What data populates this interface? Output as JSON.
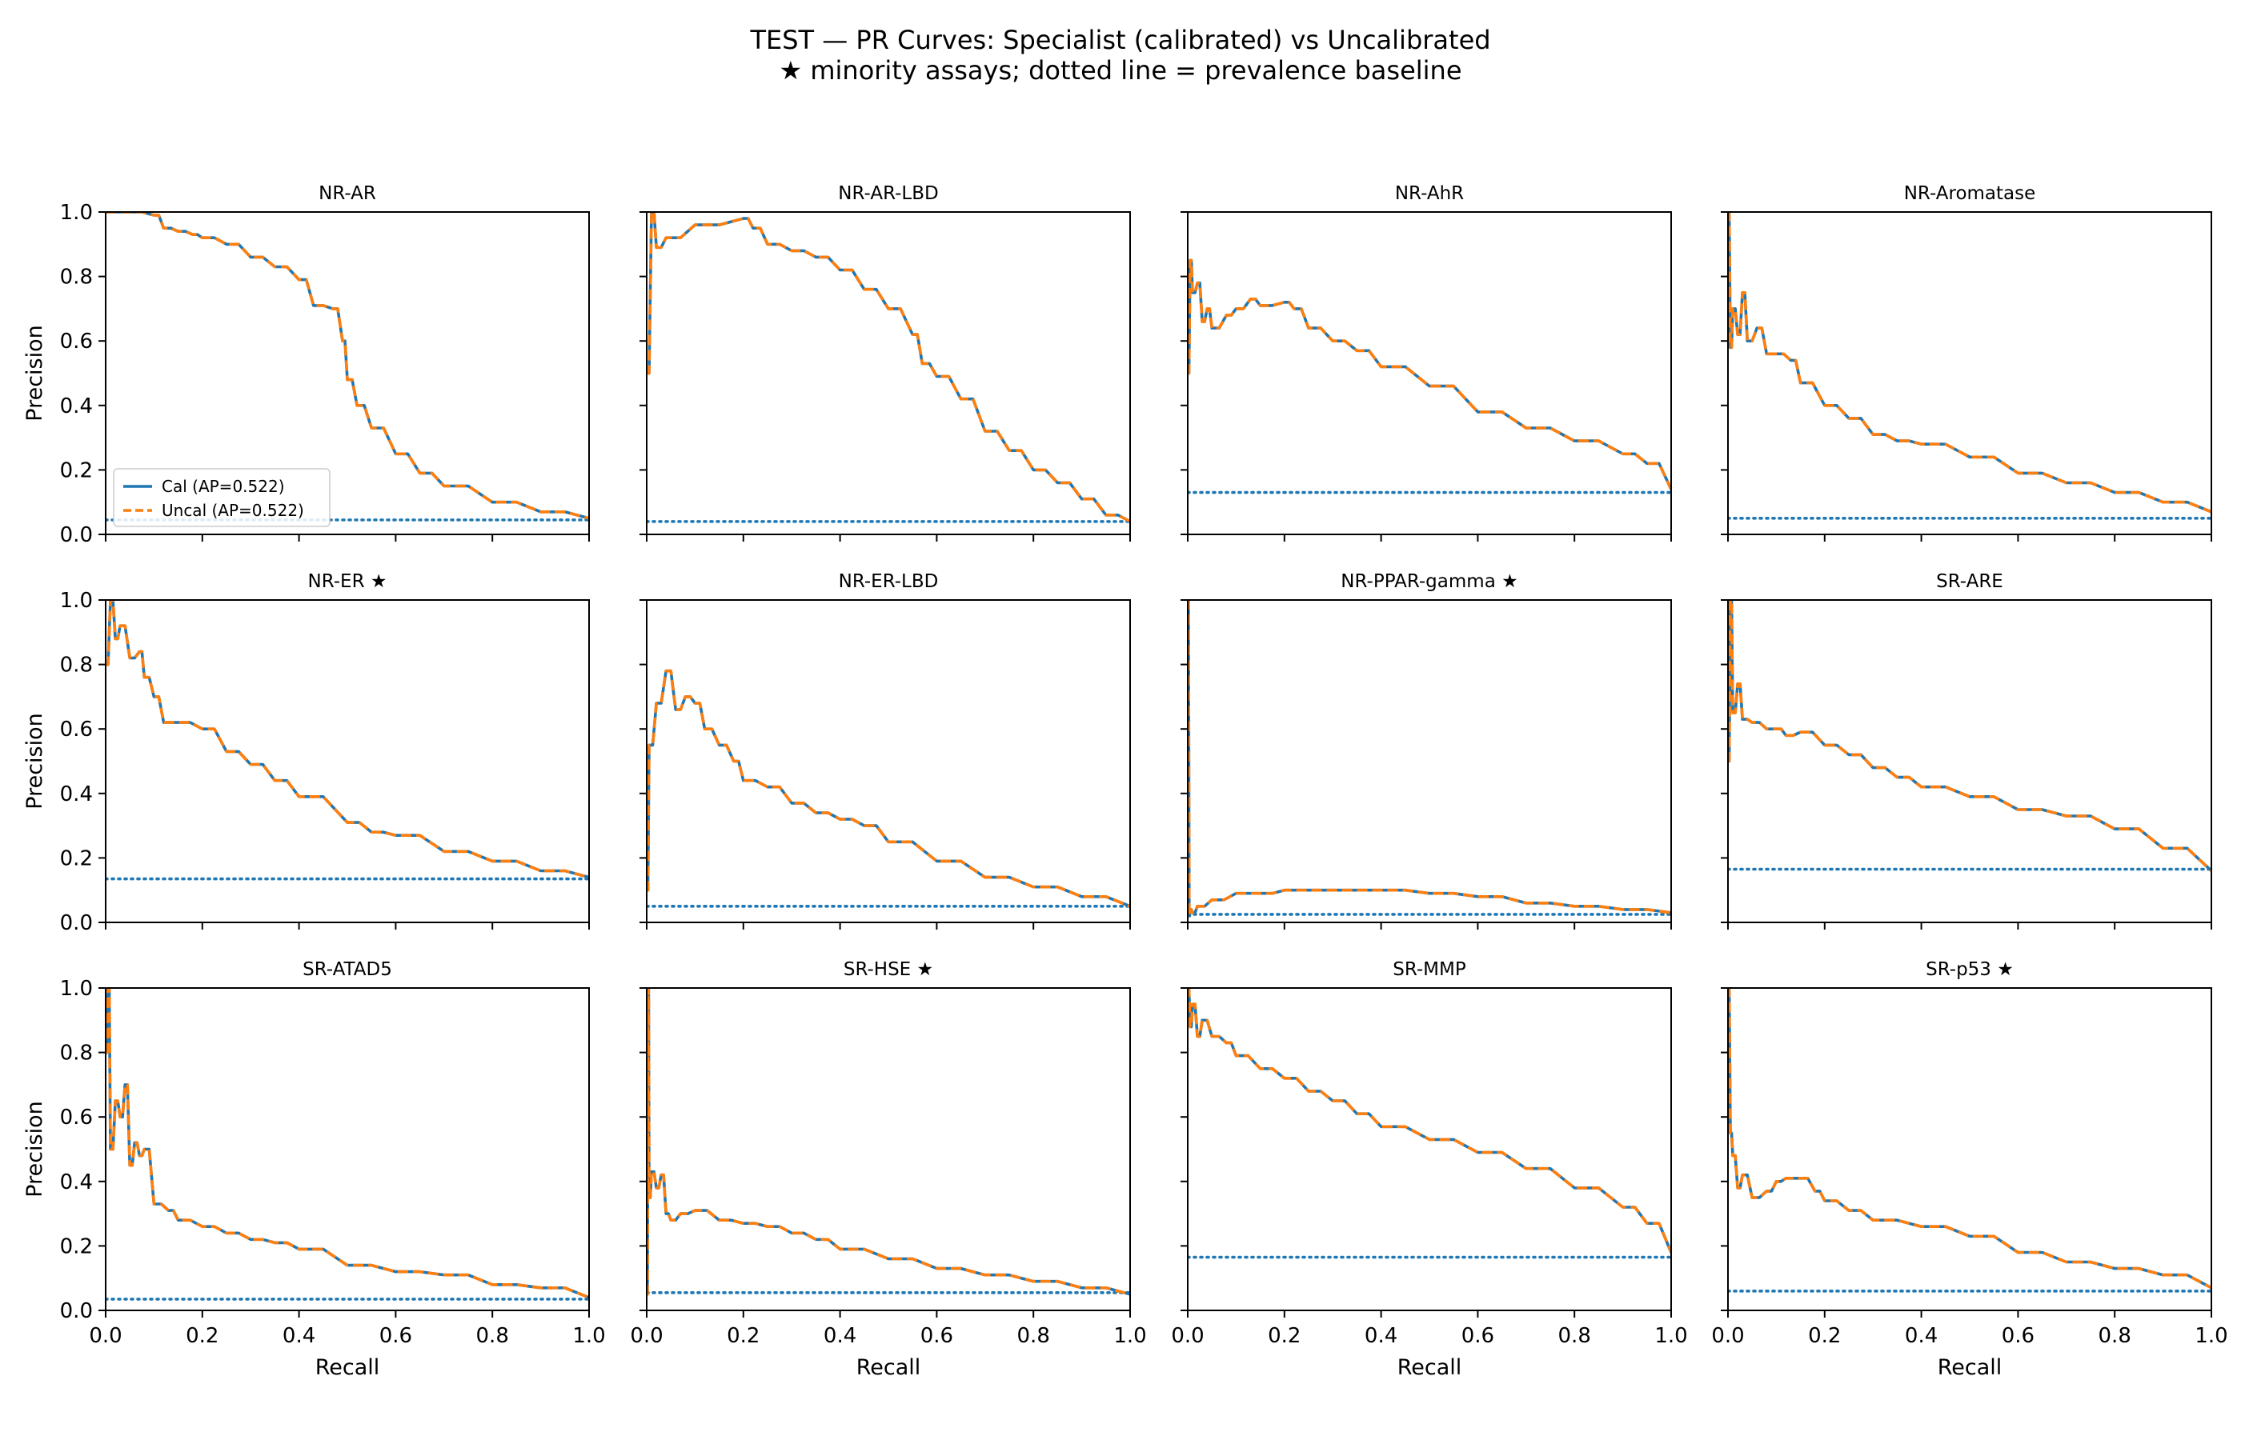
{
  "figure": {
    "title_line1": "TEST — PR Curves: Specialist (calibrated) vs Uncalibrated",
    "title_line2": "★ minority assays; dotted line = prevalence baseline"
  },
  "colors": {
    "cal": "#1f77b4",
    "uncal": "#ff7f0e",
    "baseline": "#1f77b4"
  },
  "chart_data": [
    {
      "type": "line",
      "title": "NR-AR",
      "xlabel": "",
      "ylabel": "Precision",
      "xlim": [
        0,
        1
      ],
      "ylim": [
        0,
        1
      ],
      "baseline": 0.045,
      "legend": {
        "placement": "lower-left",
        "entries": [
          "Cal (AP=0.522)",
          "Uncal (AP=0.522)"
        ]
      },
      "series": [
        {
          "name": "Cal (AP=0.522)",
          "style": "solid"
        },
        {
          "name": "Uncal (AP=0.522)",
          "style": "dashed"
        }
      ],
      "x": [
        0,
        0.05,
        0.1,
        0.12,
        0.15,
        0.18,
        0.2,
        0.25,
        0.3,
        0.35,
        0.4,
        0.43,
        0.47,
        0.49,
        0.5,
        0.52,
        0.55,
        0.6,
        0.65,
        0.7,
        0.8,
        0.9,
        1.0
      ],
      "y": [
        1.0,
        1.0,
        0.99,
        0.95,
        0.94,
        0.93,
        0.92,
        0.9,
        0.86,
        0.83,
        0.79,
        0.71,
        0.7,
        0.6,
        0.48,
        0.4,
        0.33,
        0.25,
        0.19,
        0.15,
        0.1,
        0.07,
        0.05
      ]
    },
    {
      "type": "line",
      "title": "NR-AR-LBD",
      "xlabel": "",
      "ylabel": "",
      "xlim": [
        0,
        1
      ],
      "ylim": [
        0,
        1
      ],
      "baseline": 0.04,
      "series": [
        {
          "name": "",
          "style": "solid"
        },
        {
          "name": "",
          "style": "dashed"
        }
      ],
      "x": [
        0,
        0.01,
        0.02,
        0.04,
        0.1,
        0.2,
        0.22,
        0.25,
        0.3,
        0.35,
        0.4,
        0.45,
        0.5,
        0.55,
        0.57,
        0.6,
        0.65,
        0.7,
        0.75,
        0.8,
        0.85,
        0.9,
        0.95,
        1.0
      ],
      "y": [
        0.5,
        1.0,
        0.89,
        0.92,
        0.96,
        0.98,
        0.95,
        0.9,
        0.88,
        0.86,
        0.82,
        0.76,
        0.7,
        0.62,
        0.53,
        0.49,
        0.42,
        0.32,
        0.26,
        0.2,
        0.16,
        0.11,
        0.06,
        0.04
      ]
    },
    {
      "type": "line",
      "title": "NR-AhR",
      "xlabel": "",
      "ylabel": "",
      "xlim": [
        0,
        1
      ],
      "ylim": [
        0,
        1
      ],
      "baseline": 0.13,
      "series": [
        {
          "name": "",
          "style": "solid"
        },
        {
          "name": "",
          "style": "dashed"
        }
      ],
      "x": [
        0,
        0.005,
        0.01,
        0.02,
        0.03,
        0.04,
        0.05,
        0.08,
        0.1,
        0.13,
        0.15,
        0.2,
        0.22,
        0.25,
        0.3,
        0.35,
        0.4,
        0.5,
        0.6,
        0.7,
        0.8,
        0.9,
        0.95,
        1.0
      ],
      "y": [
        0.5,
        0.85,
        0.75,
        0.78,
        0.66,
        0.7,
        0.64,
        0.68,
        0.7,
        0.73,
        0.71,
        0.72,
        0.7,
        0.64,
        0.6,
        0.57,
        0.52,
        0.46,
        0.38,
        0.33,
        0.29,
        0.25,
        0.22,
        0.14
      ]
    },
    {
      "type": "line",
      "title": "NR-Aromatase",
      "xlabel": "",
      "ylabel": "",
      "xlim": [
        0,
        1
      ],
      "ylim": [
        0,
        1
      ],
      "baseline": 0.05,
      "series": [
        {
          "name": "",
          "style": "solid"
        },
        {
          "name": "",
          "style": "dashed"
        }
      ],
      "x": [
        0,
        0.005,
        0.01,
        0.02,
        0.03,
        0.04,
        0.06,
        0.08,
        0.1,
        0.13,
        0.15,
        0.2,
        0.25,
        0.3,
        0.35,
        0.4,
        0.5,
        0.6,
        0.7,
        0.8,
        0.9,
        1.0
      ],
      "y": [
        1.0,
        0.58,
        0.7,
        0.62,
        0.75,
        0.6,
        0.64,
        0.56,
        0.56,
        0.54,
        0.47,
        0.4,
        0.36,
        0.31,
        0.29,
        0.28,
        0.24,
        0.19,
        0.16,
        0.13,
        0.1,
        0.07
      ]
    },
    {
      "type": "line",
      "title": "NR-ER ★",
      "xlabel": "",
      "ylabel": "Precision",
      "xlim": [
        0,
        1
      ],
      "ylim": [
        0,
        1
      ],
      "baseline": 0.135,
      "series": [
        {
          "name": "",
          "style": "solid"
        },
        {
          "name": "",
          "style": "dashed"
        }
      ],
      "x": [
        0,
        0.01,
        0.02,
        0.03,
        0.05,
        0.07,
        0.08,
        0.1,
        0.12,
        0.15,
        0.2,
        0.25,
        0.3,
        0.35,
        0.4,
        0.5,
        0.55,
        0.6,
        0.7,
        0.8,
        0.9,
        1.0
      ],
      "y": [
        0.8,
        1.0,
        0.88,
        0.92,
        0.82,
        0.84,
        0.76,
        0.7,
        0.62,
        0.62,
        0.6,
        0.53,
        0.49,
        0.44,
        0.39,
        0.31,
        0.28,
        0.27,
        0.22,
        0.19,
        0.16,
        0.14
      ]
    },
    {
      "type": "line",
      "title": "NR-ER-LBD",
      "xlabel": "",
      "ylabel": "",
      "xlim": [
        0,
        1
      ],
      "ylim": [
        0,
        1
      ],
      "baseline": 0.05,
      "series": [
        {
          "name": "",
          "style": "solid"
        },
        {
          "name": "",
          "style": "dashed"
        }
      ],
      "x": [
        0,
        0.005,
        0.02,
        0.04,
        0.06,
        0.08,
        0.1,
        0.12,
        0.15,
        0.18,
        0.2,
        0.25,
        0.3,
        0.35,
        0.4,
        0.45,
        0.5,
        0.6,
        0.7,
        0.8,
        0.9,
        1.0
      ],
      "y": [
        0.1,
        0.55,
        0.68,
        0.78,
        0.66,
        0.7,
        0.68,
        0.6,
        0.55,
        0.5,
        0.44,
        0.42,
        0.37,
        0.34,
        0.32,
        0.3,
        0.25,
        0.19,
        0.14,
        0.11,
        0.08,
        0.05
      ]
    },
    {
      "type": "line",
      "title": "NR-PPAR-gamma ★",
      "xlabel": "",
      "ylabel": "",
      "xlim": [
        0,
        1
      ],
      "ylim": [
        0,
        1
      ],
      "baseline": 0.025,
      "series": [
        {
          "name": "",
          "style": "solid"
        },
        {
          "name": "",
          "style": "dashed"
        }
      ],
      "x": [
        0,
        0.003,
        0.005,
        0.01,
        0.02,
        0.05,
        0.1,
        0.15,
        0.2,
        0.25,
        0.3,
        0.35,
        0.4,
        0.5,
        0.6,
        0.7,
        0.8,
        0.9,
        1.0
      ],
      "y": [
        1.0,
        0.02,
        0.04,
        0.03,
        0.05,
        0.07,
        0.09,
        0.09,
        0.1,
        0.1,
        0.1,
        0.1,
        0.1,
        0.09,
        0.08,
        0.06,
        0.05,
        0.04,
        0.03
      ]
    },
    {
      "type": "line",
      "title": "SR-ARE",
      "xlabel": "",
      "ylabel": "",
      "xlim": [
        0,
        1
      ],
      "ylim": [
        0,
        1
      ],
      "baseline": 0.165,
      "series": [
        {
          "name": "",
          "style": "solid"
        },
        {
          "name": "",
          "style": "dashed"
        }
      ],
      "x": [
        0,
        0.005,
        0.01,
        0.02,
        0.03,
        0.05,
        0.08,
        0.1,
        0.12,
        0.15,
        0.2,
        0.25,
        0.3,
        0.35,
        0.4,
        0.5,
        0.6,
        0.7,
        0.8,
        0.9,
        1.0
      ],
      "y": [
        0.5,
        1.0,
        0.65,
        0.74,
        0.63,
        0.62,
        0.6,
        0.6,
        0.58,
        0.59,
        0.55,
        0.52,
        0.48,
        0.45,
        0.42,
        0.39,
        0.35,
        0.33,
        0.29,
        0.23,
        0.16
      ]
    },
    {
      "type": "line",
      "title": "SR-ATAD5",
      "xlabel": "Recall",
      "ylabel": "Precision",
      "xlim": [
        0,
        1
      ],
      "ylim": [
        0,
        1
      ],
      "baseline": 0.035,
      "series": [
        {
          "name": "",
          "style": "solid"
        },
        {
          "name": "",
          "style": "dashed"
        }
      ],
      "x": [
        0,
        0.005,
        0.01,
        0.02,
        0.03,
        0.04,
        0.05,
        0.06,
        0.07,
        0.08,
        0.1,
        0.13,
        0.15,
        0.2,
        0.25,
        0.3,
        0.35,
        0.4,
        0.5,
        0.6,
        0.7,
        0.8,
        0.9,
        1.0
      ],
      "y": [
        0.8,
        1.0,
        0.5,
        0.65,
        0.6,
        0.7,
        0.45,
        0.52,
        0.48,
        0.5,
        0.33,
        0.31,
        0.28,
        0.26,
        0.24,
        0.22,
        0.21,
        0.19,
        0.14,
        0.12,
        0.11,
        0.08,
        0.07,
        0.04
      ]
    },
    {
      "type": "line",
      "title": "SR-HSE ★",
      "xlabel": "Recall",
      "ylabel": "",
      "xlim": [
        0,
        1
      ],
      "ylim": [
        0,
        1
      ],
      "baseline": 0.055,
      "series": [
        {
          "name": "",
          "style": "solid"
        },
        {
          "name": "",
          "style": "dashed"
        }
      ],
      "x": [
        0,
        0.003,
        0.005,
        0.01,
        0.02,
        0.03,
        0.04,
        0.05,
        0.07,
        0.1,
        0.15,
        0.2,
        0.25,
        0.3,
        0.35,
        0.4,
        0.5,
        0.6,
        0.7,
        0.8,
        0.9,
        1.0
      ],
      "y": [
        0.05,
        1.0,
        0.35,
        0.43,
        0.38,
        0.42,
        0.3,
        0.28,
        0.3,
        0.31,
        0.28,
        0.27,
        0.26,
        0.24,
        0.22,
        0.19,
        0.16,
        0.13,
        0.11,
        0.09,
        0.07,
        0.05
      ]
    },
    {
      "type": "line",
      "title": "SR-MMP",
      "xlabel": "Recall",
      "ylabel": "",
      "xlim": [
        0,
        1
      ],
      "ylim": [
        0,
        1
      ],
      "baseline": 0.165,
      "series": [
        {
          "name": "",
          "style": "solid"
        },
        {
          "name": "",
          "style": "dashed"
        }
      ],
      "x": [
        0,
        0.005,
        0.01,
        0.02,
        0.03,
        0.05,
        0.08,
        0.1,
        0.15,
        0.2,
        0.25,
        0.3,
        0.35,
        0.4,
        0.5,
        0.6,
        0.7,
        0.8,
        0.9,
        0.95,
        1.0
      ],
      "y": [
        1.0,
        0.88,
        0.95,
        0.85,
        0.9,
        0.85,
        0.83,
        0.79,
        0.75,
        0.72,
        0.68,
        0.65,
        0.61,
        0.57,
        0.53,
        0.49,
        0.44,
        0.38,
        0.32,
        0.27,
        0.18
      ]
    },
    {
      "type": "line",
      "title": "SR-p53 ★",
      "xlabel": "Recall",
      "ylabel": "",
      "xlim": [
        0,
        1
      ],
      "ylim": [
        0,
        1
      ],
      "baseline": 0.06,
      "series": [
        {
          "name": "",
          "style": "solid"
        },
        {
          "name": "",
          "style": "dashed"
        }
      ],
      "x": [
        0,
        0.005,
        0.01,
        0.02,
        0.03,
        0.05,
        0.08,
        0.1,
        0.12,
        0.15,
        0.18,
        0.2,
        0.25,
        0.3,
        0.4,
        0.5,
        0.6,
        0.7,
        0.8,
        0.9,
        1.0
      ],
      "y": [
        1.0,
        0.55,
        0.48,
        0.38,
        0.42,
        0.35,
        0.37,
        0.4,
        0.41,
        0.41,
        0.37,
        0.34,
        0.31,
        0.28,
        0.26,
        0.23,
        0.18,
        0.15,
        0.13,
        0.11,
        0.07
      ]
    }
  ]
}
